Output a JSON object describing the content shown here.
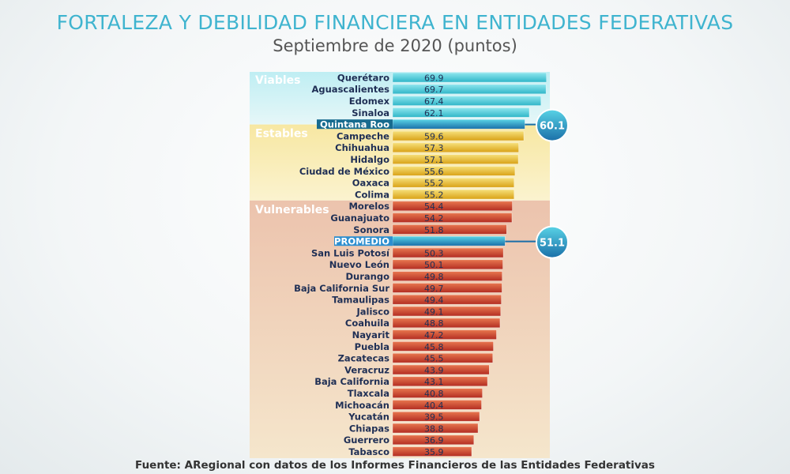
{
  "header": {
    "title": "FORTALEZA Y DEBILIDAD FINANCIERA EN ENTIDADES FEDERATIVAS",
    "subtitle": "Septiembre de 2020 (puntos)"
  },
  "footer": {
    "source": "Fuente: ARegional con datos de los Informes Financieros de las Entidades Federativas"
  },
  "colors": {
    "viables": "#3fc3d3",
    "estables": "#e0b020",
    "vulnerables": "#c0392b",
    "highlight": "#1e7fb8",
    "title": "#3fb4cf"
  },
  "chart_data": {
    "type": "bar",
    "orientation": "horizontal",
    "title": "FORTALEZA Y DEBILIDAD FINANCIERA EN ENTIDADES FEDERATIVAS",
    "subtitle": "Septiembre de 2020 (puntos)",
    "groups": [
      {
        "name": "Viables",
        "color": "#3fc3d3"
      },
      {
        "name": "Estables",
        "color": "#e0b020"
      },
      {
        "name": "Vulnerables",
        "color": "#c0392b"
      }
    ],
    "bars": [
      {
        "label": "Querétaro",
        "value": 69.9,
        "group": "Viables"
      },
      {
        "label": "Aguascalientes",
        "value": 69.7,
        "group": "Viables"
      },
      {
        "label": "Edomex",
        "value": 67.4,
        "group": "Viables"
      },
      {
        "label": "Sinaloa",
        "value": 62.1,
        "group": "Viables"
      },
      {
        "label": "Quintana Roo",
        "value": 60.1,
        "group": "Viables",
        "highlight": true,
        "callout": "60.1"
      },
      {
        "label": "Campeche",
        "value": 59.6,
        "group": "Estables"
      },
      {
        "label": "Chihuahua",
        "value": 57.3,
        "group": "Estables"
      },
      {
        "label": "Hidalgo",
        "value": 57.1,
        "group": "Estables"
      },
      {
        "label": "Ciudad de México",
        "value": 55.6,
        "group": "Estables"
      },
      {
        "label": "Oaxaca",
        "value": 55.2,
        "group": "Estables"
      },
      {
        "label": "Colima",
        "value": 55.2,
        "group": "Estables"
      },
      {
        "label": "Morelos",
        "value": 54.4,
        "group": "Vulnerables"
      },
      {
        "label": "Guanajuato",
        "value": 54.2,
        "group": "Vulnerables"
      },
      {
        "label": "Sonora",
        "value": 51.8,
        "group": "Vulnerables"
      },
      {
        "label": "PROMEDIO",
        "value": 51.1,
        "group": "Vulnerables",
        "highlight": true,
        "average": true,
        "callout": "51.1"
      },
      {
        "label": "San Luis Potosí",
        "value": 50.3,
        "group": "Vulnerables"
      },
      {
        "label": "Nuevo León",
        "value": 50.1,
        "group": "Vulnerables"
      },
      {
        "label": "Durango",
        "value": 49.8,
        "group": "Vulnerables"
      },
      {
        "label": "Baja California Sur",
        "value": 49.7,
        "group": "Vulnerables"
      },
      {
        "label": "Tamaulipas",
        "value": 49.4,
        "group": "Vulnerables"
      },
      {
        "label": "Jalisco",
        "value": 49.1,
        "group": "Vulnerables"
      },
      {
        "label": "Coahuila",
        "value": 48.8,
        "group": "Vulnerables"
      },
      {
        "label": "Nayarit",
        "value": 47.2,
        "group": "Vulnerables"
      },
      {
        "label": "Puebla",
        "value": 45.8,
        "group": "Vulnerables"
      },
      {
        "label": "Zacatecas",
        "value": 45.5,
        "group": "Vulnerables"
      },
      {
        "label": "Veracruz",
        "value": 43.9,
        "group": "Vulnerables"
      },
      {
        "label": "Baja California",
        "value": 43.1,
        "group": "Vulnerables"
      },
      {
        "label": "Tlaxcala",
        "value": 40.8,
        "group": "Vulnerables"
      },
      {
        "label": "Michoacán",
        "value": 40.4,
        "group": "Vulnerables"
      },
      {
        "label": "Yucatán",
        "value": 39.5,
        "group": "Vulnerables"
      },
      {
        "label": "Chiapas",
        "value": 38.8,
        "group": "Vulnerables"
      },
      {
        "label": "Guerrero",
        "value": 36.9,
        "group": "Vulnerables"
      },
      {
        "label": "Tabasco",
        "value": 35.9,
        "group": "Vulnerables"
      }
    ],
    "grid": false,
    "legend": "none"
  }
}
